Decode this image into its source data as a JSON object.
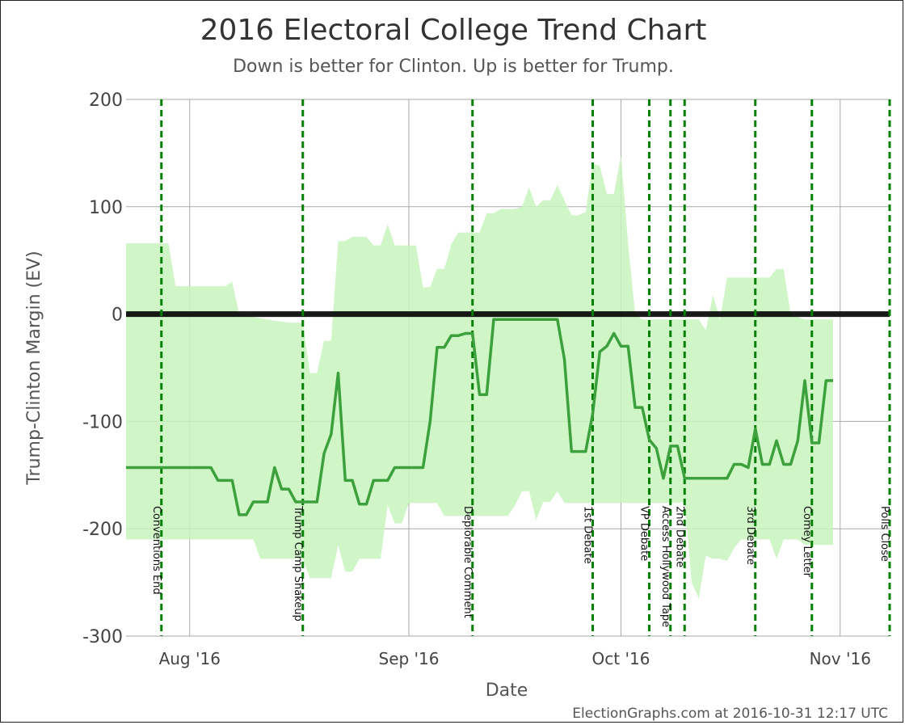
{
  "chart_data": {
    "type": "line",
    "title": "2016 Electoral College Trend Chart",
    "subtitle": "Down is better for Clinton. Up is better for Trump.",
    "xlabel": "Date",
    "ylabel": "Trump-Clinton Margin (EV)",
    "credit": "ElectionGraphs.com at 2016-10-31 12:17 UTC",
    "xlim": [
      "2016-07-23",
      "2016-11-08"
    ],
    "ylim": [
      -300,
      200
    ],
    "y_ticks": [
      200,
      100,
      0,
      -100,
      -200,
      -300
    ],
    "x_ticks": [
      {
        "date": "2016-08-01",
        "label": "Aug '16"
      },
      {
        "date": "2016-09-01",
        "label": "Sep '16"
      },
      {
        "date": "2016-10-01",
        "label": "Oct '16"
      },
      {
        "date": "2016-11-01",
        "label": "Nov '16"
      }
    ],
    "grid": true,
    "colors": {
      "band": "#c8f5be",
      "line": "#3ca03c",
      "event": "#008000",
      "zero": "#000000",
      "grid": "#aaaaaa",
      "text": "#444444"
    },
    "events": [
      {
        "date": "2016-07-28",
        "label": "Conventions End"
      },
      {
        "date": "2016-08-17",
        "label": "Trump Camp Shakeup"
      },
      {
        "date": "2016-09-10",
        "label": "Deplorable Comment"
      },
      {
        "date": "2016-09-27",
        "label": "1st Debate"
      },
      {
        "date": "2016-10-05",
        "label": "VP Debate"
      },
      {
        "date": "2016-10-08",
        "label": "Access Hollywood Tape"
      },
      {
        "date": "2016-10-10",
        "label": "2nd Debate"
      },
      {
        "date": "2016-10-20",
        "label": "3rd Debate"
      },
      {
        "date": "2016-10-28",
        "label": "Comey Letter"
      },
      {
        "date": "2016-11-08",
        "label": "Polls Close"
      }
    ],
    "band": {
      "upper": [
        [
          "2016-07-23",
          66
        ],
        [
          "2016-07-29",
          66
        ],
        [
          "2016-07-30",
          26
        ],
        [
          "2016-08-06",
          26
        ],
        [
          "2016-08-07",
          30
        ],
        [
          "2016-08-08",
          0
        ],
        [
          "2016-08-12",
          -5
        ],
        [
          "2016-08-15",
          -8
        ],
        [
          "2016-08-17",
          -8
        ],
        [
          "2016-08-18",
          -55
        ],
        [
          "2016-08-19",
          -55
        ],
        [
          "2016-08-20",
          -25
        ],
        [
          "2016-08-21",
          -25
        ],
        [
          "2016-08-22",
          68
        ],
        [
          "2016-08-23",
          68
        ],
        [
          "2016-08-24",
          72
        ],
        [
          "2016-08-26",
          72
        ],
        [
          "2016-08-27",
          64
        ],
        [
          "2016-08-28",
          64
        ],
        [
          "2016-08-29",
          84
        ],
        [
          "2016-08-30",
          64
        ],
        [
          "2016-09-02",
          64
        ],
        [
          "2016-09-03",
          25
        ],
        [
          "2016-09-04",
          25
        ],
        [
          "2016-09-05",
          42
        ],
        [
          "2016-09-06",
          42
        ],
        [
          "2016-09-07",
          65
        ],
        [
          "2016-09-08",
          76
        ],
        [
          "2016-09-11",
          76
        ],
        [
          "2016-09-12",
          94
        ],
        [
          "2016-09-13",
          94
        ],
        [
          "2016-09-14",
          98
        ],
        [
          "2016-09-16",
          98
        ],
        [
          "2016-09-17",
          100
        ],
        [
          "2016-09-18",
          118
        ],
        [
          "2016-09-19",
          100
        ],
        [
          "2016-09-20",
          106
        ],
        [
          "2016-09-21",
          106
        ],
        [
          "2016-09-22",
          120
        ],
        [
          "2016-09-24",
          92
        ],
        [
          "2016-09-25",
          92
        ],
        [
          "2016-09-26",
          95
        ],
        [
          "2016-09-27",
          140
        ],
        [
          "2016-09-28",
          138
        ],
        [
          "2016-09-29",
          112
        ],
        [
          "2016-09-30",
          112
        ],
        [
          "2016-10-01",
          148
        ],
        [
          "2016-10-02",
          66
        ],
        [
          "2016-10-03",
          0
        ],
        [
          "2016-10-04",
          -5
        ],
        [
          "2016-10-12",
          -5
        ],
        [
          "2016-10-13",
          -15
        ],
        [
          "2016-10-14",
          18
        ],
        [
          "2016-10-15",
          -5
        ],
        [
          "2016-10-16",
          34
        ],
        [
          "2016-10-22",
          34
        ],
        [
          "2016-10-23",
          42
        ],
        [
          "2016-10-24",
          42
        ],
        [
          "2016-10-25",
          0
        ],
        [
          "2016-10-27",
          -5
        ],
        [
          "2016-10-31",
          -5
        ]
      ],
      "lower": [
        [
          "2016-07-23",
          -210
        ],
        [
          "2016-08-10",
          -210
        ],
        [
          "2016-08-11",
          -228
        ],
        [
          "2016-08-17",
          -228
        ],
        [
          "2016-08-18",
          -246
        ],
        [
          "2016-08-21",
          -246
        ],
        [
          "2016-08-22",
          -215
        ],
        [
          "2016-08-23",
          -240
        ],
        [
          "2016-08-24",
          -240
        ],
        [
          "2016-08-25",
          -228
        ],
        [
          "2016-08-28",
          -228
        ],
        [
          "2016-08-29",
          -178
        ],
        [
          "2016-08-30",
          -195
        ],
        [
          "2016-08-31",
          -195
        ],
        [
          "2016-09-01",
          -176
        ],
        [
          "2016-09-05",
          -176
        ],
        [
          "2016-09-06",
          -188
        ],
        [
          "2016-09-15",
          -188
        ],
        [
          "2016-09-16",
          -178
        ],
        [
          "2016-09-17",
          -165
        ],
        [
          "2016-09-18",
          -165
        ],
        [
          "2016-09-19",
          -192
        ],
        [
          "2016-09-20",
          -175
        ],
        [
          "2016-09-21",
          -175
        ],
        [
          "2016-09-22",
          -165
        ],
        [
          "2016-09-23",
          -176
        ],
        [
          "2016-10-09",
          -176
        ],
        [
          "2016-10-10",
          -175
        ],
        [
          "2016-10-11",
          -250
        ],
        [
          "2016-10-12",
          -265
        ],
        [
          "2016-10-13",
          -225
        ],
        [
          "2016-10-14",
          -228
        ],
        [
          "2016-10-15",
          -228
        ],
        [
          "2016-10-16",
          -230
        ],
        [
          "2016-10-17",
          -218
        ],
        [
          "2016-10-18",
          -210
        ],
        [
          "2016-10-22",
          -210
        ],
        [
          "2016-10-23",
          -228
        ],
        [
          "2016-10-24",
          -210
        ],
        [
          "2016-10-26",
          -210
        ],
        [
          "2016-10-27",
          -215
        ],
        [
          "2016-10-31",
          -215
        ]
      ]
    },
    "series": [
      {
        "points": [
          [
            "2016-07-23",
            -143
          ],
          [
            "2016-08-04",
            -143
          ],
          [
            "2016-08-05",
            -155
          ],
          [
            "2016-08-07",
            -155
          ],
          [
            "2016-08-08",
            -187
          ],
          [
            "2016-08-09",
            -187
          ],
          [
            "2016-08-10",
            -175
          ],
          [
            "2016-08-12",
            -175
          ],
          [
            "2016-08-13",
            -143
          ],
          [
            "2016-08-14",
            -163
          ],
          [
            "2016-08-15",
            -163
          ],
          [
            "2016-08-16",
            -175
          ],
          [
            "2016-08-19",
            -175
          ],
          [
            "2016-08-20",
            -130
          ],
          [
            "2016-08-21",
            -112
          ],
          [
            "2016-08-22",
            -55
          ],
          [
            "2016-08-23",
            -155
          ],
          [
            "2016-08-24",
            -155
          ],
          [
            "2016-08-25",
            -177
          ],
          [
            "2016-08-26",
            -177
          ],
          [
            "2016-08-27",
            -155
          ],
          [
            "2016-08-29",
            -155
          ],
          [
            "2016-08-30",
            -143
          ],
          [
            "2016-09-03",
            -143
          ],
          [
            "2016-09-04",
            -100
          ],
          [
            "2016-09-05",
            -31
          ],
          [
            "2016-09-06",
            -31
          ],
          [
            "2016-09-07",
            -20
          ],
          [
            "2016-09-08",
            -20
          ],
          [
            "2016-09-09",
            -18
          ],
          [
            "2016-09-10",
            -18
          ],
          [
            "2016-09-11",
            -75
          ],
          [
            "2016-09-12",
            -75
          ],
          [
            "2016-09-13",
            -5
          ],
          [
            "2016-09-22",
            -5
          ],
          [
            "2016-09-23",
            -42
          ],
          [
            "2016-09-24",
            -128
          ],
          [
            "2016-09-26",
            -128
          ],
          [
            "2016-09-27",
            -93
          ],
          [
            "2016-09-28",
            -35
          ],
          [
            "2016-09-29",
            -30
          ],
          [
            "2016-09-30",
            -18
          ],
          [
            "2016-10-01",
            -30
          ],
          [
            "2016-10-02",
            -30
          ],
          [
            "2016-10-03",
            -87
          ],
          [
            "2016-10-04",
            -87
          ],
          [
            "2016-10-05",
            -117
          ],
          [
            "2016-10-06",
            -125
          ],
          [
            "2016-10-07",
            -153
          ],
          [
            "2016-10-08",
            -123
          ],
          [
            "2016-10-09",
            -123
          ],
          [
            "2016-10-10",
            -153
          ],
          [
            "2016-10-16",
            -153
          ],
          [
            "2016-10-17",
            -140
          ],
          [
            "2016-10-18",
            -140
          ],
          [
            "2016-10-19",
            -143
          ],
          [
            "2016-10-20",
            -107
          ],
          [
            "2016-10-21",
            -140
          ],
          [
            "2016-10-22",
            -140
          ],
          [
            "2016-10-23",
            -118
          ],
          [
            "2016-10-24",
            -140
          ],
          [
            "2016-10-25",
            -140
          ],
          [
            "2016-10-26",
            -118
          ],
          [
            "2016-10-27",
            -62
          ],
          [
            "2016-10-28",
            -120
          ],
          [
            "2016-10-29",
            -120
          ],
          [
            "2016-10-30",
            -62
          ],
          [
            "2016-10-31",
            -62
          ]
        ]
      }
    ]
  }
}
